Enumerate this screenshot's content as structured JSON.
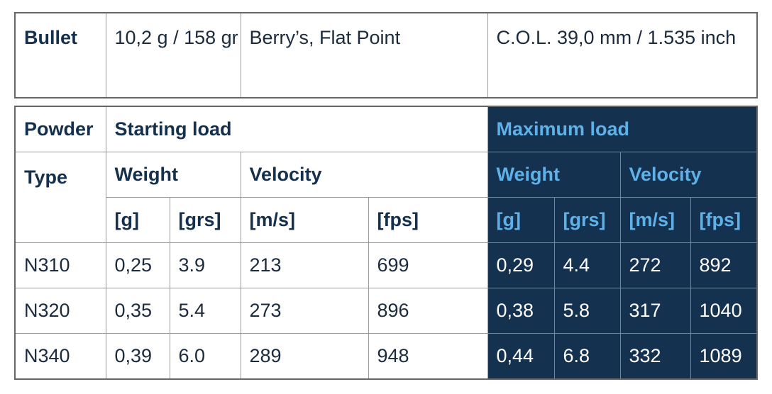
{
  "bullet_table": {
    "rows": [
      [
        "Bullet",
        "10,2 g / 158 gr",
        "Berry’s, Flat Point",
        "C.O.L. 39,0 mm / 1.535 inch"
      ]
    ]
  },
  "load_table": {
    "header": {
      "powder": "Powder",
      "starting": "Starting load",
      "maximum": "Maximum load",
      "type": "Type",
      "start_weight": "Weight",
      "start_velocity": "Velocity",
      "max_weight": "Weight",
      "max_velocity": "Velocity",
      "units": [
        "[g]",
        "[grs]",
        "[m/s]",
        "[fps]",
        "[g]",
        "[grs]",
        "[m/s]",
        "[fps]"
      ]
    },
    "rows": [
      [
        "N310",
        "0,25",
        "3.9",
        "213",
        "699",
        "0,29",
        "4.4",
        "272",
        "892"
      ],
      [
        "N320",
        "0,35",
        "5.4",
        "273",
        "896",
        "0,38",
        "5.8",
        "317",
        "1040"
      ],
      [
        "N340",
        "0,39",
        "6.0",
        "289",
        "948",
        "0,44",
        "6.8",
        "332",
        "1089"
      ]
    ]
  }
}
